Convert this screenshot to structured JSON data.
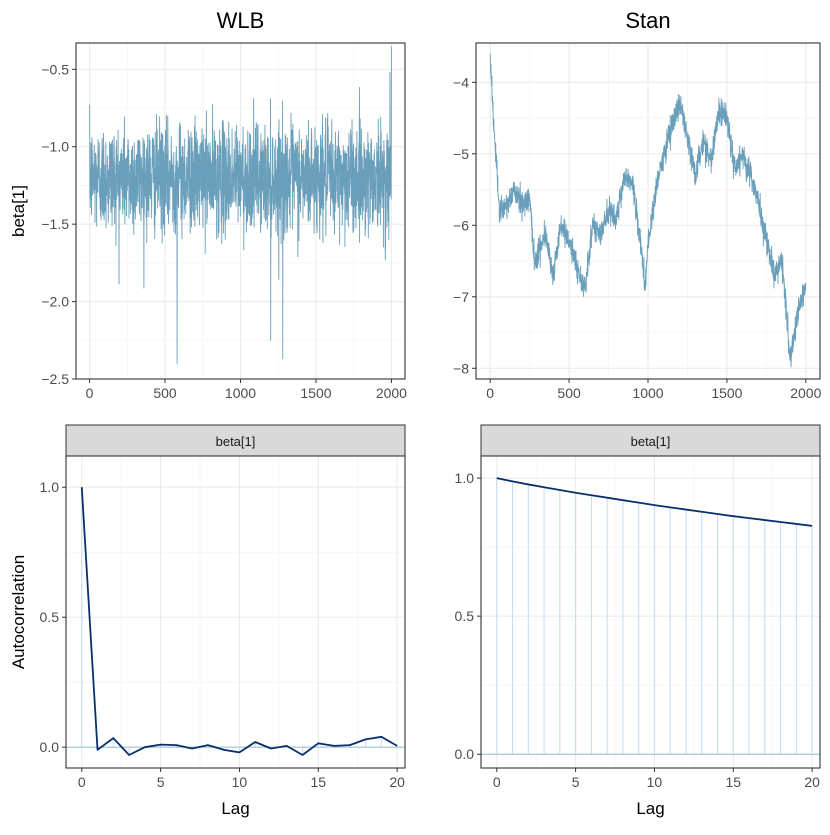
{
  "chart_data": [
    {
      "id": "trace-wlb",
      "type": "line",
      "title": "WLB",
      "ylabel": "beta[1]",
      "xlabel": "",
      "xlim": [
        -90,
        2090
      ],
      "ylim": [
        -2.5,
        -0.33
      ],
      "xticks": [
        0,
        500,
        1000,
        1500,
        2000
      ],
      "xtick_labels": [
        "0",
        "500",
        "1000",
        "1500",
        "2000"
      ],
      "yticks": [
        -2.5,
        -2.0,
        -1.5,
        -1.0,
        -0.5
      ],
      "ytick_labels": [
        "−2.5",
        "−2.0",
        "−1.5",
        "−1.0",
        "−0.5"
      ],
      "grid": true,
      "series": [
        {
          "color": "#6a9fbb",
          "trace": {
            "n": 2000,
            "mean": -1.2,
            "sd": 0.17,
            "min": -2.4,
            "max": -0.35,
            "autocorrelation": 0.0
          },
          "notable_points": [
            [
              580,
              -2.4
            ],
            [
              1280,
              -2.37
            ],
            [
              1200,
              -2.25
            ],
            [
              2000,
              -0.35
            ],
            [
              1990,
              -0.52
            ]
          ]
        }
      ]
    },
    {
      "id": "trace-stan",
      "type": "line",
      "title": "Stan",
      "ylabel": "",
      "xlabel": "",
      "xlim": [
        -90,
        2090
      ],
      "ylim": [
        -8.15,
        -3.45
      ],
      "xticks": [
        0,
        500,
        1000,
        1500,
        2000
      ],
      "xtick_labels": [
        "0",
        "500",
        "1000",
        "1500",
        "2000"
      ],
      "yticks": [
        -8,
        -7,
        -6,
        -5,
        -4
      ],
      "ytick_labels": [
        "−8",
        "−7",
        "−6",
        "−5",
        "−4"
      ],
      "grid": true,
      "series": [
        {
          "color": "#6a9fbb",
          "x": [
            0,
            30,
            60,
            100,
            150,
            200,
            250,
            280,
            300,
            350,
            400,
            450,
            500,
            550,
            600,
            650,
            700,
            750,
            800,
            850,
            900,
            950,
            980,
            1000,
            1050,
            1100,
            1150,
            1200,
            1250,
            1300,
            1350,
            1400,
            1450,
            1500,
            1550,
            1600,
            1650,
            1700,
            1750,
            1800,
            1850,
            1880,
            1900,
            1950,
            2000
          ],
          "y": [
            -3.6,
            -4.9,
            -5.8,
            -5.75,
            -5.5,
            -5.7,
            -5.6,
            -6.5,
            -6.4,
            -6.1,
            -6.7,
            -6.0,
            -6.2,
            -6.6,
            -6.9,
            -6.0,
            -6.1,
            -5.8,
            -5.9,
            -5.3,
            -5.4,
            -6.2,
            -6.85,
            -6.3,
            -5.5,
            -5.0,
            -4.6,
            -4.3,
            -4.8,
            -5.3,
            -4.8,
            -5.1,
            -4.4,
            -4.5,
            -5.2,
            -5.0,
            -5.3,
            -5.7,
            -6.2,
            -6.7,
            -6.5,
            -7.3,
            -7.9,
            -7.2,
            -6.8
          ]
        }
      ]
    },
    {
      "id": "acf-wlb",
      "type": "line",
      "strip": "beta[1]",
      "ylabel": "Autocorrelation",
      "xlabel": "Lag",
      "xlim": [
        -1,
        20.5
      ],
      "ylim": [
        -0.08,
        1.12
      ],
      "xticks": [
        0,
        5,
        10,
        15,
        20
      ],
      "xtick_labels": [
        "0",
        "5",
        "10",
        "15",
        "20"
      ],
      "yticks": [
        0.0,
        0.5,
        1.0
      ],
      "ytick_labels": [
        "0.0",
        "0.5",
        "1.0"
      ],
      "grid": true,
      "series": [
        {
          "color": "#08306b",
          "x": [
            0,
            1,
            2,
            3,
            4,
            5,
            6,
            7,
            8,
            9,
            10,
            11,
            12,
            13,
            14,
            15,
            16,
            17,
            18,
            19,
            20
          ],
          "y": [
            1.0,
            -0.01,
            0.035,
            -0.03,
            0.0,
            0.01,
            0.008,
            -0.005,
            0.008,
            -0.01,
            -0.02,
            0.02,
            -0.005,
            0.005,
            -0.03,
            0.015,
            0.005,
            0.008,
            0.03,
            0.04,
            0.005
          ]
        }
      ]
    },
    {
      "id": "acf-stan",
      "type": "line",
      "strip": "beta[1]",
      "ylabel": "",
      "xlabel": "Lag",
      "xlim": [
        -1,
        20.5
      ],
      "ylim": [
        -0.05,
        1.08
      ],
      "xticks": [
        0,
        5,
        10,
        15,
        20
      ],
      "xtick_labels": [
        "0",
        "5",
        "10",
        "15",
        "20"
      ],
      "yticks": [
        0.0,
        0.5,
        1.0
      ],
      "ytick_labels": [
        "0.0",
        "0.5",
        "1.0"
      ],
      "grid": true,
      "series": [
        {
          "color": "#08306b",
          "x": [
            0,
            1,
            2,
            3,
            4,
            5,
            6,
            7,
            8,
            9,
            10,
            11,
            12,
            13,
            14,
            15,
            16,
            17,
            18,
            19,
            20
          ],
          "y": [
            1.0,
            0.988,
            0.977,
            0.967,
            0.957,
            0.947,
            0.938,
            0.929,
            0.92,
            0.911,
            0.902,
            0.894,
            0.886,
            0.878,
            0.87,
            0.862,
            0.855,
            0.848,
            0.841,
            0.834,
            0.827
          ]
        }
      ]
    }
  ],
  "colors": {
    "trace": "#6a9fbb",
    "acf": "#08306b",
    "acf_zero_line": "#9ec5db",
    "grid_major": "#ebebeb",
    "grid_minor": "#f5f5f5",
    "strip_fill": "#d9d9d9"
  }
}
